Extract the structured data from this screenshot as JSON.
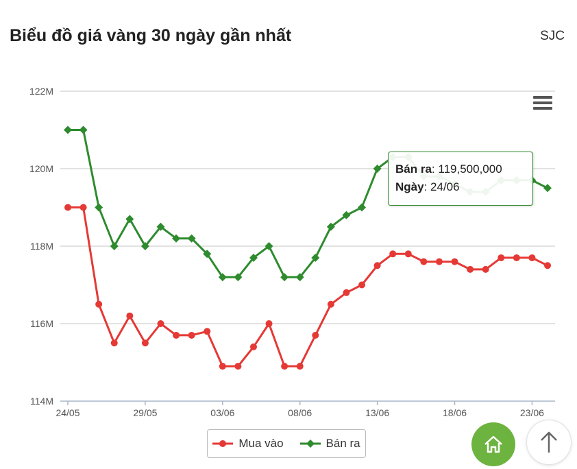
{
  "header": {
    "title": "Biểu đồ giá vàng 30 ngày gần nhất",
    "brand": "SJC"
  },
  "colors": {
    "buy": "#e53935",
    "sell": "#2e8b2e",
    "grid": "#d9d9d9",
    "home": "#6db33f"
  },
  "icons": {
    "menu": "hamburger-icon",
    "home": "home-icon",
    "up": "arrow-up-icon"
  },
  "tooltip": {
    "series_label": "Bán ra",
    "series_value": "119,500,000",
    "date_label": "Ngày",
    "date_value": "24/06"
  },
  "chart_data": {
    "type": "line",
    "x": [
      "24/05",
      "25/05",
      "26/05",
      "27/05",
      "28/05",
      "29/05",
      "30/05",
      "31/05",
      "01/06",
      "02/06",
      "03/06",
      "04/06",
      "05/06",
      "06/06",
      "07/06",
      "08/06",
      "09/06",
      "10/06",
      "11/06",
      "12/06",
      "13/06",
      "14/06",
      "15/06",
      "16/06",
      "17/06",
      "18/06",
      "19/06",
      "20/06",
      "21/06",
      "22/06",
      "23/06",
      "24/06"
    ],
    "x_tick_labels": [
      "24/05",
      "29/05",
      "03/06",
      "08/06",
      "13/06",
      "18/06",
      "23/06"
    ],
    "y_tick_labels": [
      "114M",
      "116M",
      "118M",
      "120M",
      "122M"
    ],
    "ylim": [
      114,
      122
    ],
    "y_unit": "M",
    "grid": true,
    "legend_position": "bottom",
    "series": [
      {
        "name": "Mua vào",
        "values": [
          119.0,
          119.0,
          116.5,
          115.5,
          116.2,
          115.5,
          116.0,
          115.7,
          115.7,
          115.8,
          114.9,
          114.9,
          115.4,
          116.0,
          114.9,
          114.9,
          115.7,
          116.5,
          116.8,
          117.0,
          117.5,
          117.8,
          117.8,
          117.6,
          117.6,
          117.6,
          117.4,
          117.4,
          117.7,
          117.7,
          117.7,
          117.5
        ]
      },
      {
        "name": "Bán ra",
        "values": [
          121.0,
          121.0,
          119.0,
          118.0,
          118.7,
          118.0,
          118.5,
          118.2,
          118.2,
          117.8,
          117.2,
          117.2,
          117.7,
          118.0,
          117.2,
          117.2,
          117.7,
          118.5,
          118.8,
          119.0,
          120.0,
          120.3,
          120.3,
          119.8,
          119.8,
          119.6,
          119.4,
          119.4,
          119.7,
          119.7,
          119.7,
          119.5
        ]
      }
    ]
  }
}
